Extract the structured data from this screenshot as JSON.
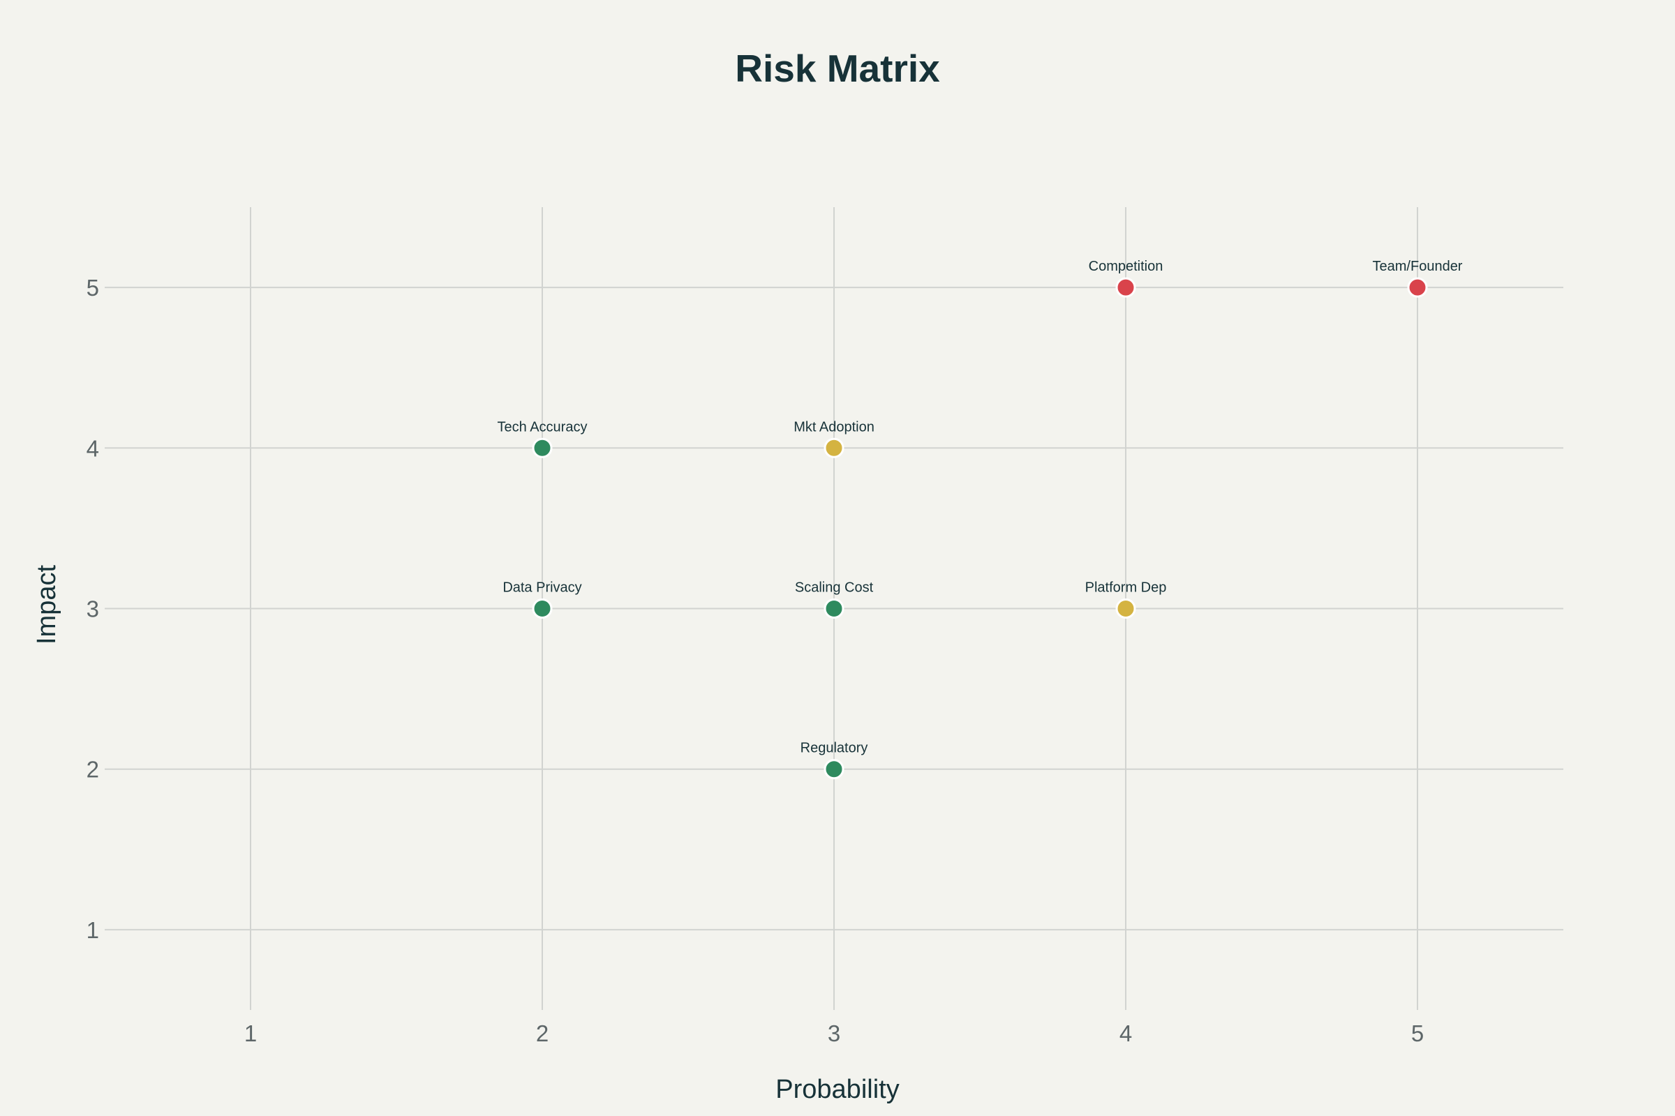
{
  "chart_data": {
    "type": "scatter",
    "title": "Risk Matrix",
    "xlabel": "Probability",
    "ylabel": "Impact",
    "xlim": [
      0.5,
      5.5
    ],
    "ylim": [
      0.5,
      5.5
    ],
    "xticks": [
      "1",
      "2",
      "3",
      "4",
      "5"
    ],
    "yticks": [
      "1",
      "2",
      "3",
      "4",
      "5"
    ],
    "grid": true,
    "points": [
      {
        "label": "Competition",
        "x": 4,
        "y": 5,
        "color": "#d9434b"
      },
      {
        "label": "Team/Founder",
        "x": 5,
        "y": 5,
        "color": "#d9434b"
      },
      {
        "label": "Tech Accuracy",
        "x": 2,
        "y": 4,
        "color": "#2e8a5e"
      },
      {
        "label": "Mkt Adoption",
        "x": 3,
        "y": 4,
        "color": "#d4b341"
      },
      {
        "label": "Data Privacy",
        "x": 2,
        "y": 3,
        "color": "#2e8a5e"
      },
      {
        "label": "Scaling Cost",
        "x": 3,
        "y": 3,
        "color": "#2e8a5e"
      },
      {
        "label": "Platform Dep",
        "x": 4,
        "y": 3,
        "color": "#d4b341"
      },
      {
        "label": "Regulatory",
        "x": 3,
        "y": 2,
        "color": "#2e8a5e"
      }
    ]
  }
}
